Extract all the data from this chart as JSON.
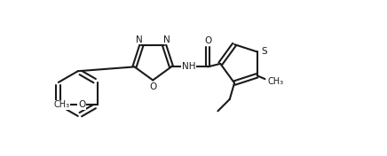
{
  "bg_color": "#ffffff",
  "lc": "#1a1a1a",
  "lw": 1.5,
  "fs": 7.5,
  "fig_w": 4.36,
  "fig_h": 1.76,
  "dpi": 100,
  "xlim": [
    0.0,
    11.0
  ],
  "ylim": [
    -2.5,
    2.5
  ]
}
